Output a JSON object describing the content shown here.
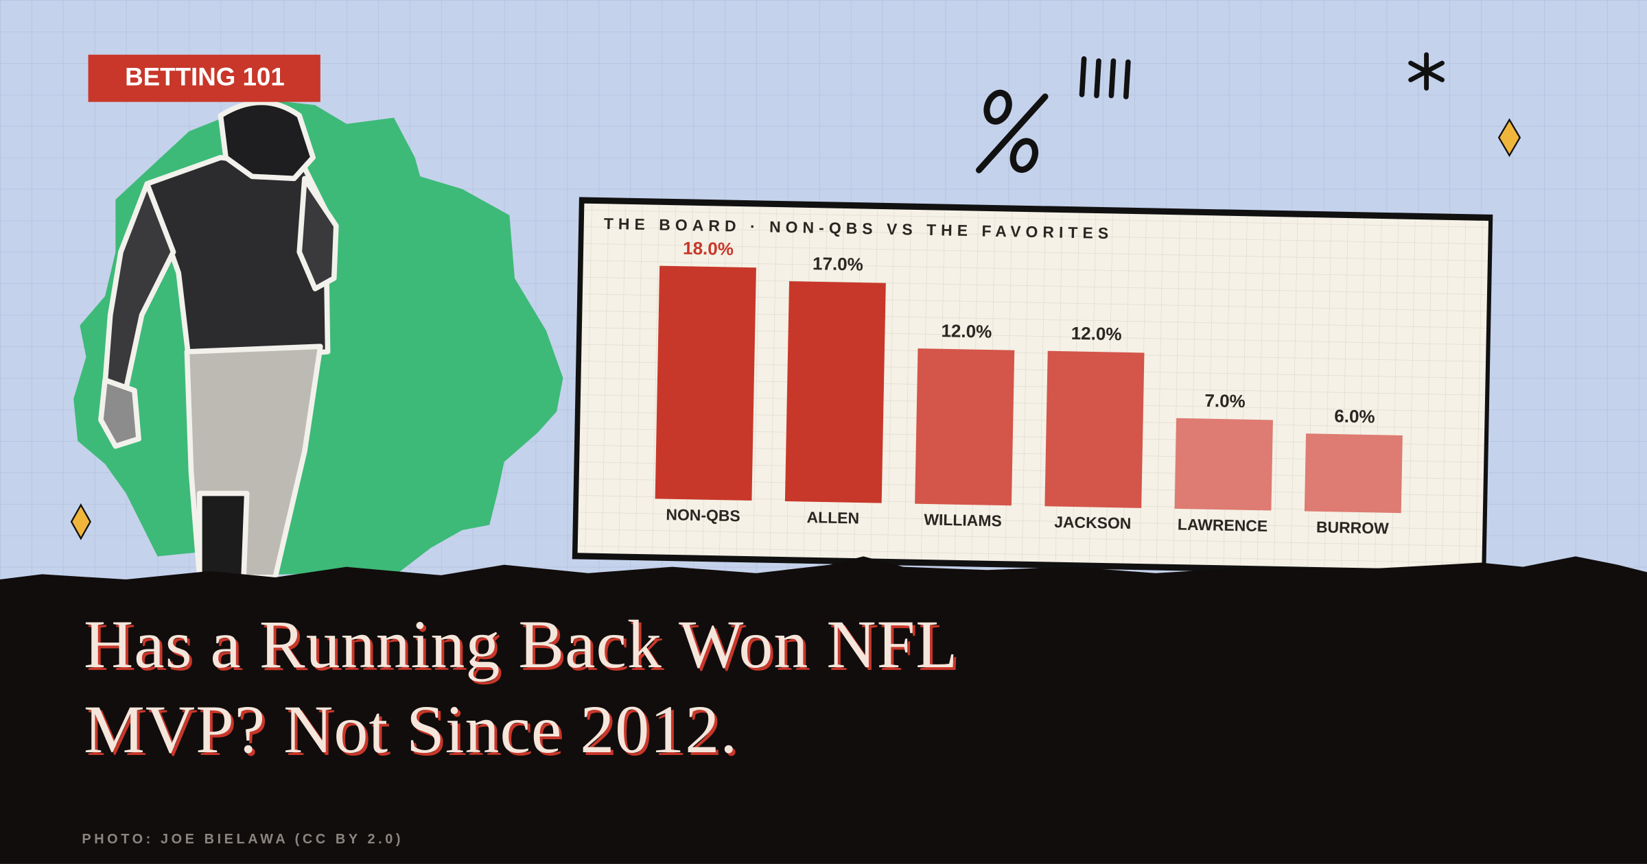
{
  "tag": "BETTING 101",
  "headline": "Has a Running Back Won NFL MVP? Not Since 2012.",
  "credit": "PHOTO: JOE BIELAWA (CC BY 2.0)",
  "chart_data": {
    "type": "bar",
    "title": "THE BOARD · NON-QBS VS THE FAVORITES",
    "categories": [
      "NON-QBS",
      "ALLEN",
      "WILLIAMS",
      "JACKSON",
      "LAWRENCE",
      "BURROW"
    ],
    "values": [
      18,
      17,
      12,
      12,
      7,
      6
    ],
    "value_labels": [
      "18.0%",
      "17.0%",
      "12.0%",
      "12.0%",
      "7.0%",
      "6.0%"
    ],
    "colors": [
      "#c8382a",
      "#c8382a",
      "#d4554a",
      "#d4554a",
      "#de7b72",
      "#de7b72"
    ]
  }
}
